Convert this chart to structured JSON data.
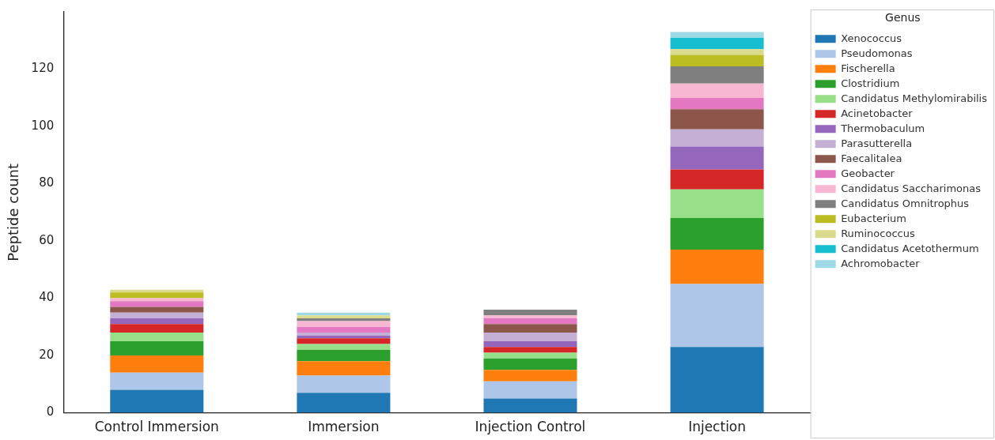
{
  "chart_data": {
    "type": "bar",
    "stacked": true,
    "ylabel": "Peptide count",
    "legend_title": "Genus",
    "legend": "right",
    "grid": false,
    "categories": [
      "Control Immersion",
      "Immersion",
      "Injection Control",
      "Injection"
    ],
    "ylim": [
      0,
      140
    ],
    "yticks": [
      0,
      20,
      40,
      60,
      80,
      100,
      120
    ],
    "series": [
      {
        "name": "Xenococcus",
        "color": "#1f77b4",
        "values": [
          8,
          7,
          5,
          23
        ]
      },
      {
        "name": "Pseudomonas",
        "color": "#aec7e8",
        "values": [
          6,
          6,
          6,
          22
        ]
      },
      {
        "name": "Fischerella",
        "color": "#ff7f0e",
        "values": [
          6,
          5,
          4,
          12
        ]
      },
      {
        "name": "Clostridium",
        "color": "#2ca02c",
        "values": [
          5,
          4,
          4,
          11
        ]
      },
      {
        "name": "Candidatus Methylomirabilis",
        "color": "#98df8a",
        "values": [
          3,
          2,
          2,
          10
        ]
      },
      {
        "name": "Acinetobacter",
        "color": "#d62728",
        "values": [
          3,
          2,
          2,
          7
        ]
      },
      {
        "name": "Thermobaculum",
        "color": "#9467bd",
        "values": [
          2,
          1,
          2,
          8
        ]
      },
      {
        "name": "Parasutterella",
        "color": "#c5b0d5",
        "values": [
          2,
          1,
          3,
          6
        ]
      },
      {
        "name": "Faecalitalea",
        "color": "#8c564b",
        "values": [
          2,
          0,
          3,
          7
        ]
      },
      {
        "name": "Geobacter",
        "color": "#e377c2",
        "values": [
          2,
          2,
          2,
          4
        ]
      },
      {
        "name": "Candidatus Saccharimonas",
        "color": "#f7b6d2",
        "values": [
          1,
          2,
          1,
          5
        ]
      },
      {
        "name": "Candidatus Omnitrophus",
        "color": "#7f7f7f",
        "values": [
          0,
          1,
          2,
          6
        ]
      },
      {
        "name": "Eubacterium",
        "color": "#bcbd22",
        "values": [
          2,
          0,
          0,
          4
        ]
      },
      {
        "name": "Ruminococcus",
        "color": "#dbdb8d",
        "values": [
          1,
          1,
          0,
          2
        ]
      },
      {
        "name": "Candidatus Acetothermum",
        "color": "#17becf",
        "values": [
          0,
          0,
          0,
          4
        ]
      },
      {
        "name": "Achromobacter",
        "color": "#9edae5",
        "values": [
          0,
          1,
          0,
          2
        ]
      }
    ]
  }
}
